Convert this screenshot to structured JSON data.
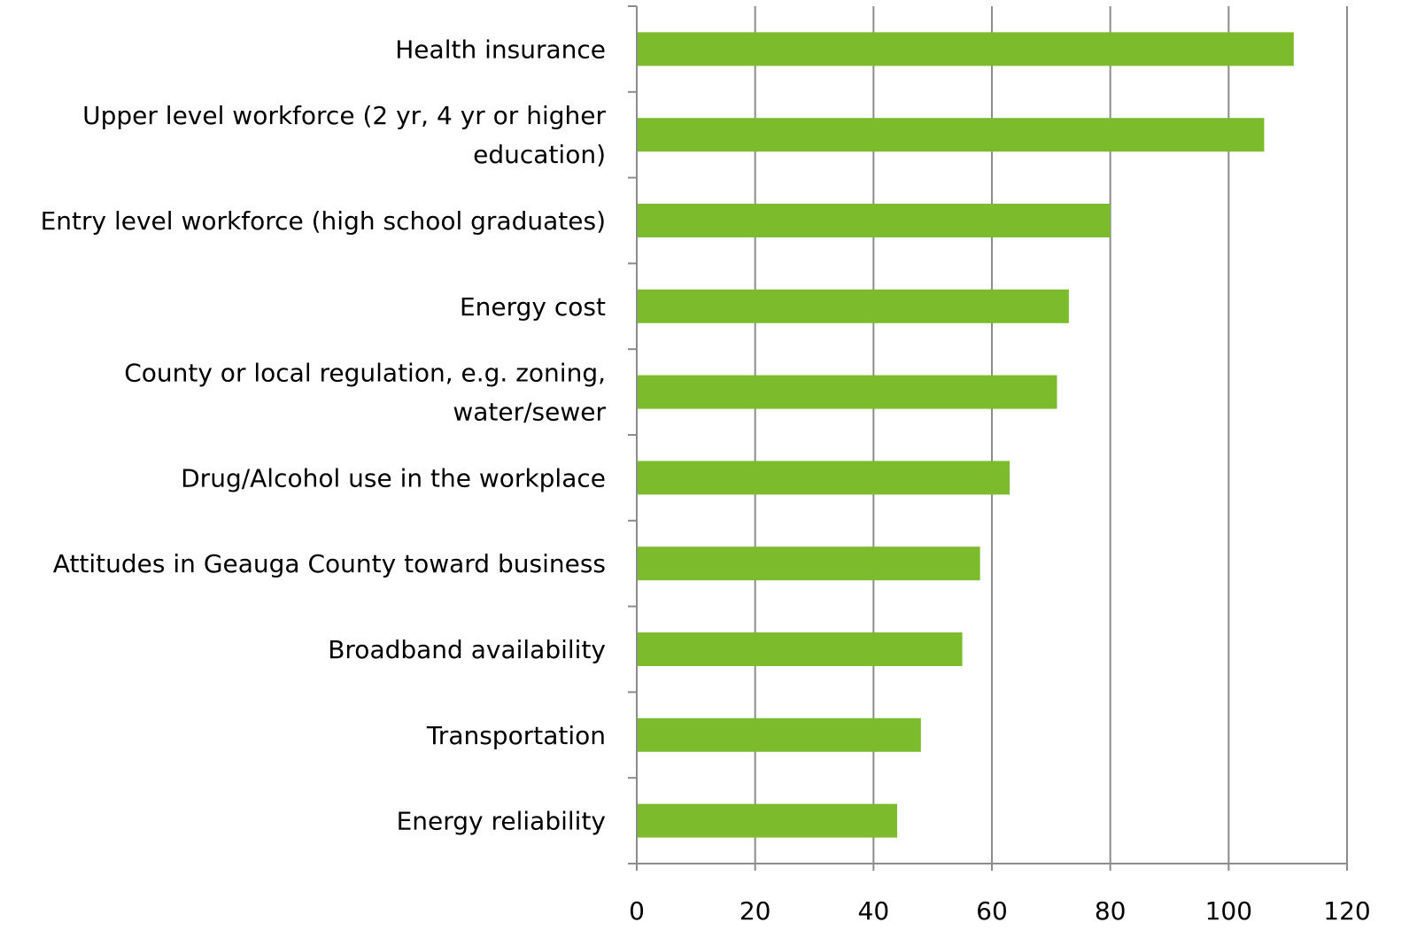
{
  "chart_data": {
    "type": "bar",
    "orientation": "horizontal",
    "title": "",
    "xlabel": "",
    "ylabel": "",
    "categories": [
      "Health insurance ",
      "Upper level workforce (2 yr, 4 yr or higher education)",
      "Entry level workforce (high school graduates)",
      "Energy cost",
      "County or local regulation, e.g. zoning, water/sewer",
      "Drug/Alcohol use in the workplace ",
      "Attitudes in Geauga County  toward business",
      "Broadband availability",
      "Transportation",
      "Energy reliability"
    ],
    "category_lines": [
      [
        "Health insurance "
      ],
      [
        "Upper level workforce (2 yr, 4 yr or higher",
        "education)"
      ],
      [
        "Entry level workforce (high school graduates)"
      ],
      [
        "Energy cost"
      ],
      [
        "County or local regulation, e.g. zoning,",
        "water/sewer"
      ],
      [
        "Drug/Alcohol use in the workplace "
      ],
      [
        "Attitudes in Geauga County  toward business"
      ],
      [
        "Broadband availability"
      ],
      [
        "Transportation"
      ],
      [
        "Energy reliability"
      ]
    ],
    "values": [
      111,
      106,
      80,
      73,
      71,
      63,
      58,
      55,
      48,
      44
    ],
    "xlim": [
      0,
      120
    ],
    "xticks": [
      0,
      20,
      40,
      60,
      80,
      100,
      120
    ],
    "xtick_labels": [
      "0",
      "20",
      "40",
      "60",
      "80",
      "100",
      "120"
    ],
    "grid": "vertical",
    "legend": "none",
    "bar_color": "#7cbb2c",
    "grid_color": "#8c8c8c"
  }
}
